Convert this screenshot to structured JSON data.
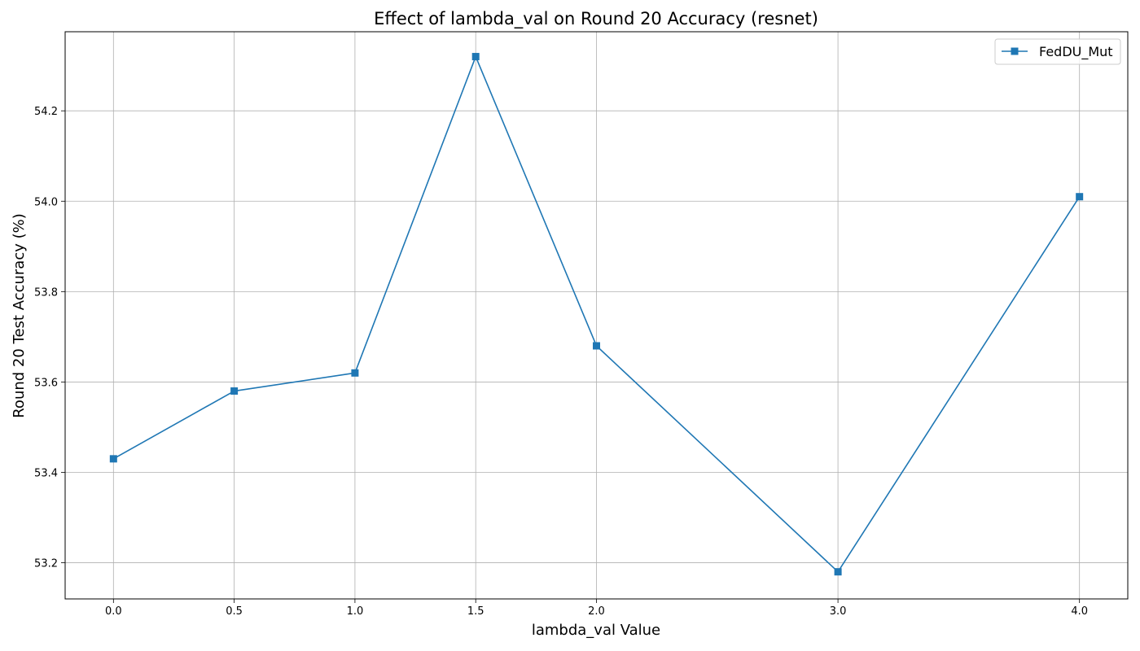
{
  "chart_data": {
    "type": "line",
    "title": "Effect of lambda_val on Round 20 Accuracy (resnet)",
    "xlabel": "lambda_val Value",
    "ylabel": "Round 20 Test Accuracy (%)",
    "xlim": [
      -0.2,
      4.2
    ],
    "ylim": [
      53.12,
      54.375
    ],
    "xticks": [
      0.0,
      0.5,
      1.0,
      1.5,
      2.0,
      3.0,
      4.0
    ],
    "xtick_labels": [
      "0.0",
      "0.5",
      "1.0",
      "1.5",
      "2.0",
      "3.0",
      "4.0"
    ],
    "yticks": [
      53.2,
      53.4,
      53.6,
      53.8,
      54.0,
      54.2
    ],
    "ytick_labels": [
      "53.2",
      "53.4",
      "53.6",
      "53.8",
      "54.0",
      "54.2"
    ],
    "grid": true,
    "legend_position": "top-right",
    "series": [
      {
        "name": "FedDU_Mut",
        "color": "#1f77b4",
        "marker": "square",
        "x": [
          0.0,
          0.5,
          1.0,
          1.5,
          2.0,
          3.0,
          4.0
        ],
        "y": [
          53.43,
          53.58,
          53.62,
          54.32,
          53.68,
          53.18,
          54.01
        ]
      }
    ]
  }
}
